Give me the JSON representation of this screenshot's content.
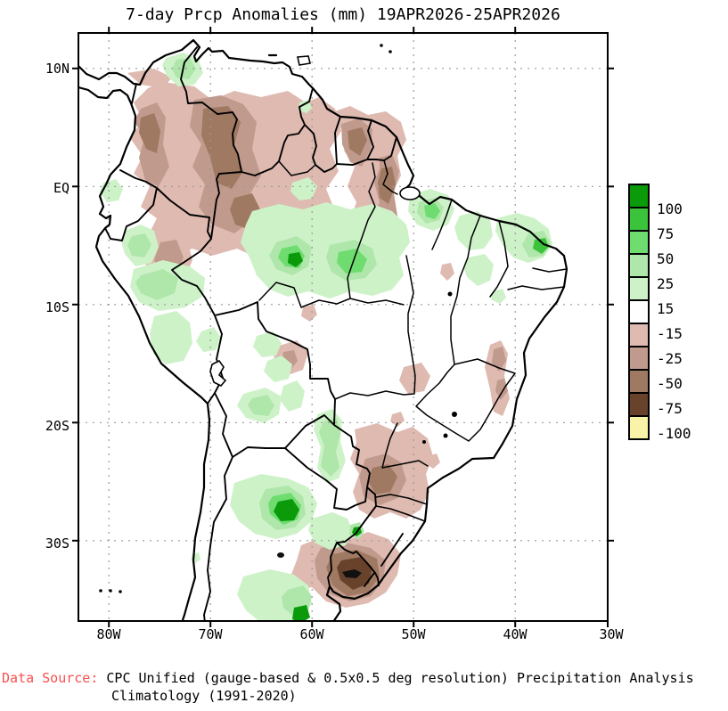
{
  "title": "7-day Prcp Anomalies (mm) 19APR2026-25APR2026",
  "map": {
    "lat_ticks": [
      "10N",
      "EQ",
      "10S",
      "20S",
      "30S"
    ],
    "lon_ticks": [
      "80W",
      "70W",
      "60W",
      "50W",
      "40W",
      "30W"
    ]
  },
  "legend": {
    "labels": [
      "100",
      "75",
      "50",
      "25",
      "15",
      "-15",
      "-25",
      "-50",
      "-75",
      "-100"
    ],
    "colors": [
      "#0a9a0a",
      "#3cc33c",
      "#6edc6e",
      "#afe6aa",
      "#cdf2c8",
      "#ffffff",
      "#debab1",
      "#c09a8c",
      "#a07962",
      "#69422c",
      "#f8f3a6"
    ]
  },
  "source": {
    "label": "Data Source:",
    "label_color": "#fa4f4f",
    "line1": "CPC Unified (gauge-based & 0.5x0.5 deg resolution) Precipitation Analysis",
    "line2": "Climatology (1991-2020)"
  }
}
